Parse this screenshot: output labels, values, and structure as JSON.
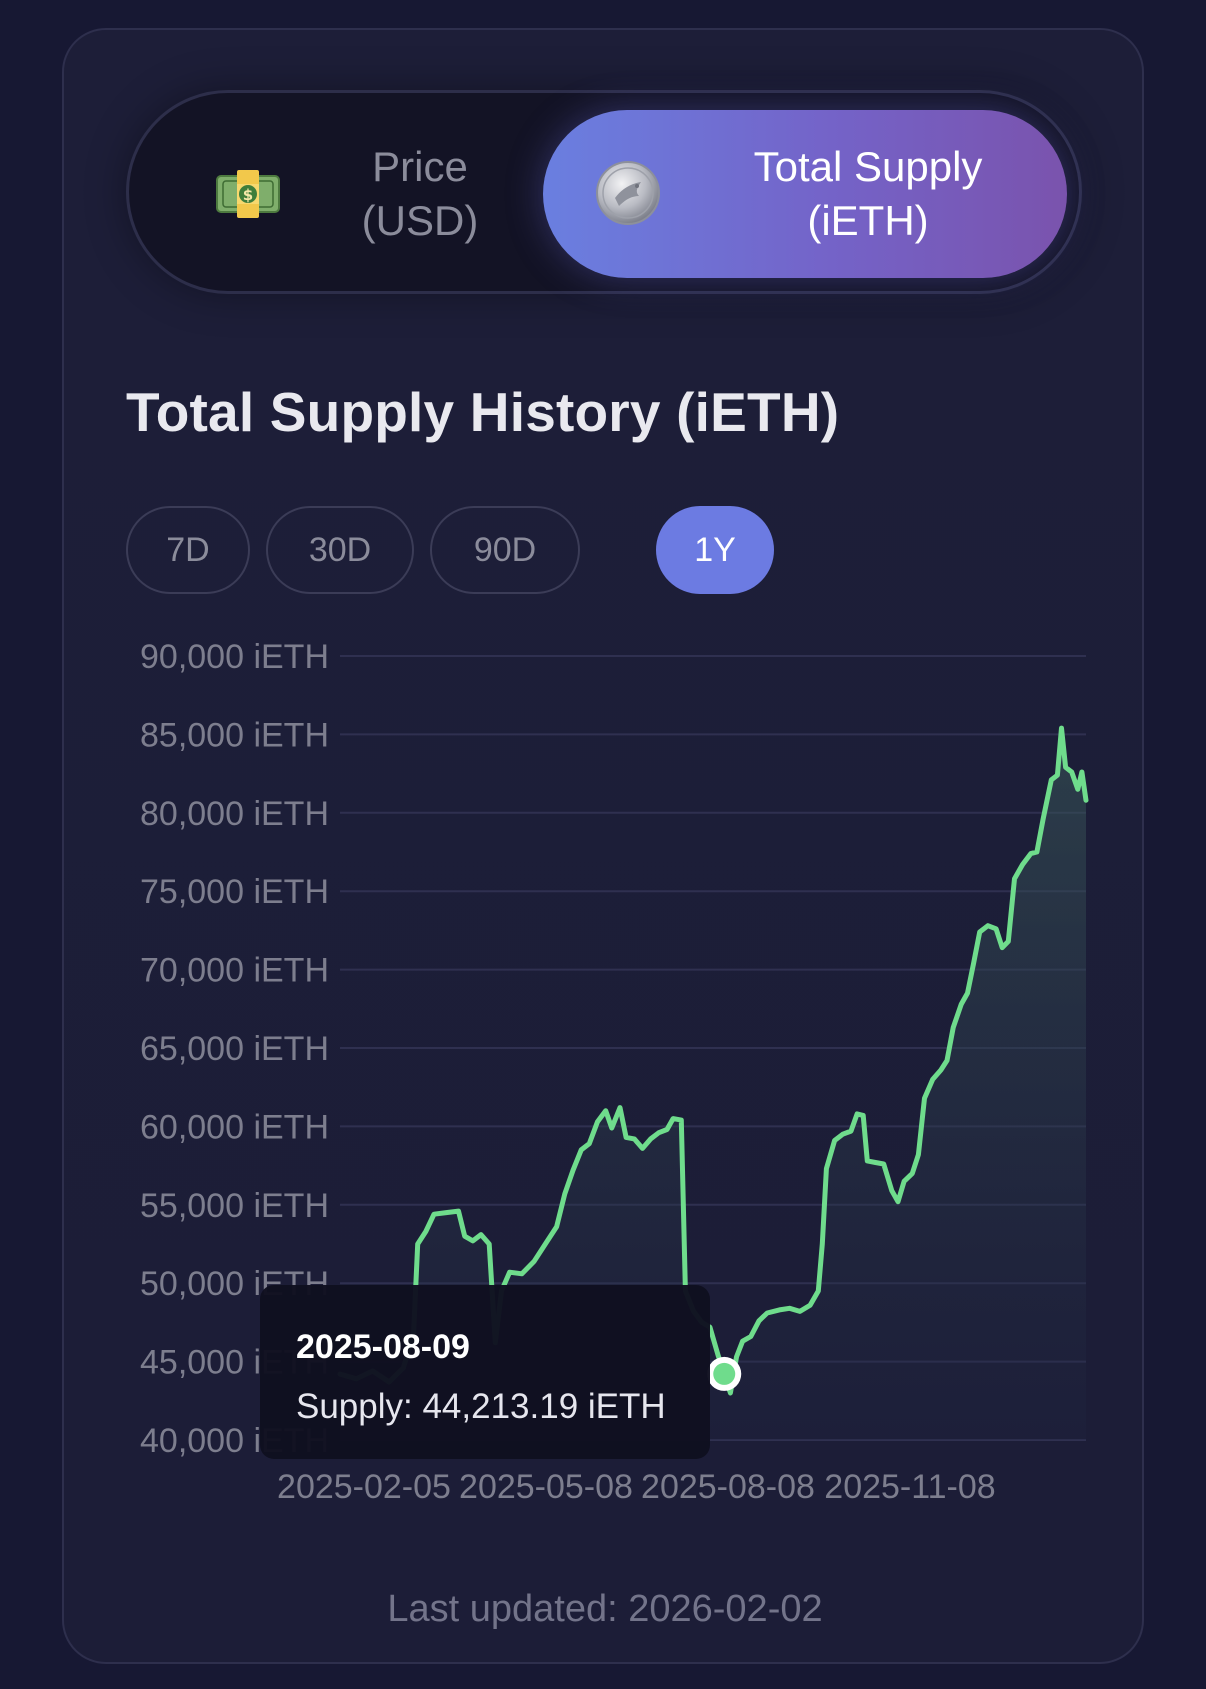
{
  "toggle": {
    "price": {
      "label": "Price\n(USD)",
      "icon": "money-bill-icon"
    },
    "supply": {
      "label": "Total Supply\n(iETH)",
      "icon": "coin-icon"
    }
  },
  "section": {
    "title": "Total Supply History (iETH)"
  },
  "ranges": [
    {
      "label": "7D",
      "active": false
    },
    {
      "label": "30D",
      "active": false
    },
    {
      "label": "90D",
      "active": false
    },
    {
      "label": "1Y",
      "active": true
    }
  ],
  "tooltip": {
    "date": "2025-08-09",
    "value": "Supply: 44,213.19 iETH"
  },
  "footer": {
    "updated": "Last updated: 2026-02-02"
  },
  "colors": {
    "line": "#6fdc8c",
    "accent": "#6c7be2",
    "gradient_end": "#7a53ad"
  },
  "chart_data": {
    "type": "area",
    "title": "Total Supply History (iETH)",
    "ylabel": "",
    "xlabel": "",
    "ylim": [
      40000,
      90000
    ],
    "xlim": [
      "2025-02-02",
      "2026-02-02"
    ],
    "y_ticks": [
      "40,000 iETH",
      "45,000 iETH",
      "50,000 iETH",
      "55,000 iETH",
      "60,000 iETH",
      "65,000 iETH",
      "70,000 iETH",
      "75,000 iETH",
      "80,000 iETH",
      "85,000 iETH",
      "90,000 iETH"
    ],
    "y_tick_values": [
      40000,
      45000,
      50000,
      55000,
      60000,
      65000,
      70000,
      75000,
      80000,
      85000,
      90000
    ],
    "x_ticks": [
      "2025-02-05",
      "2025-05-08",
      "2025-08-08",
      "2025-11-08"
    ],
    "grid": true,
    "highlight": {
      "date": "2025-08-09",
      "value": 44213.19
    },
    "series": [
      {
        "color": "#6fdc8c",
        "points": [
          [
            "2025-02-02",
            44200
          ],
          [
            "2025-02-10",
            43900
          ],
          [
            "2025-02-18",
            44400
          ],
          [
            "2025-02-26",
            43700
          ],
          [
            "2025-03-05",
            44600
          ],
          [
            "2025-03-10",
            46800
          ],
          [
            "2025-03-12",
            52500
          ],
          [
            "2025-03-16",
            53300
          ],
          [
            "2025-03-20",
            54400
          ],
          [
            "2025-03-26",
            54500
          ],
          [
            "2025-04-01",
            54600
          ],
          [
            "2025-04-04",
            53000
          ],
          [
            "2025-04-08",
            52700
          ],
          [
            "2025-04-12",
            53100
          ],
          [
            "2025-04-16",
            52500
          ],
          [
            "2025-04-19",
            46200
          ],
          [
            "2025-04-22",
            49500
          ],
          [
            "2025-04-26",
            50700
          ],
          [
            "2025-05-02",
            50600
          ],
          [
            "2025-05-08",
            51400
          ],
          [
            "2025-05-14",
            52600
          ],
          [
            "2025-05-19",
            53600
          ],
          [
            "2025-05-23",
            55700
          ],
          [
            "2025-05-27",
            57200
          ],
          [
            "2025-05-31",
            58500
          ],
          [
            "2025-06-04",
            58900
          ],
          [
            "2025-06-08",
            60300
          ],
          [
            "2025-06-12",
            61000
          ],
          [
            "2025-06-15",
            59900
          ],
          [
            "2025-06-19",
            61200
          ],
          [
            "2025-06-22",
            59300
          ],
          [
            "2025-06-26",
            59200
          ],
          [
            "2025-06-30",
            58600
          ],
          [
            "2025-07-04",
            59200
          ],
          [
            "2025-07-08",
            59600
          ],
          [
            "2025-07-12",
            59800
          ],
          [
            "2025-07-15",
            60500
          ],
          [
            "2025-07-19",
            60400
          ],
          [
            "2025-07-21",
            49500
          ],
          [
            "2025-07-25",
            48200
          ],
          [
            "2025-07-29",
            47500
          ],
          [
            "2025-08-02",
            47200
          ],
          [
            "2025-08-06",
            45400
          ],
          [
            "2025-08-09",
            44213.19
          ],
          [
            "2025-08-12",
            43000
          ],
          [
            "2025-08-15",
            45300
          ],
          [
            "2025-08-18",
            46300
          ],
          [
            "2025-08-22",
            46600
          ],
          [
            "2025-08-26",
            47600
          ],
          [
            "2025-08-30",
            48100
          ],
          [
            "2025-09-05",
            48300
          ],
          [
            "2025-09-10",
            48400
          ],
          [
            "2025-09-15",
            48200
          ],
          [
            "2025-09-20",
            48600
          ],
          [
            "2025-09-24",
            49500
          ],
          [
            "2025-09-26",
            52500
          ],
          [
            "2025-09-28",
            57300
          ],
          [
            "2025-10-02",
            59100
          ],
          [
            "2025-10-06",
            59500
          ],
          [
            "2025-10-10",
            59700
          ],
          [
            "2025-10-13",
            60800
          ],
          [
            "2025-10-16",
            60700
          ],
          [
            "2025-10-18",
            57800
          ],
          [
            "2025-10-22",
            57700
          ],
          [
            "2025-10-26",
            57600
          ],
          [
            "2025-10-30",
            55900
          ],
          [
            "2025-11-02",
            55200
          ],
          [
            "2025-11-05",
            56500
          ],
          [
            "2025-11-09",
            57000
          ],
          [
            "2025-11-12",
            58200
          ],
          [
            "2025-11-15",
            61800
          ],
          [
            "2025-11-19",
            63000
          ],
          [
            "2025-11-23",
            63600
          ],
          [
            "2025-11-26",
            64200
          ],
          [
            "2025-11-29",
            66300
          ],
          [
            "2025-12-03",
            67800
          ],
          [
            "2025-12-06",
            68500
          ],
          [
            "2025-12-09",
            70400
          ],
          [
            "2025-12-12",
            72400
          ],
          [
            "2025-12-16",
            72800
          ],
          [
            "2025-12-20",
            72600
          ],
          [
            "2025-12-23",
            71400
          ],
          [
            "2025-12-26",
            71800
          ],
          [
            "2025-12-29",
            75800
          ],
          [
            "2026-01-02",
            76700
          ],
          [
            "2026-01-06",
            77400
          ],
          [
            "2026-01-09",
            77500
          ],
          [
            "2026-01-12",
            79600
          ],
          [
            "2026-01-16",
            82100
          ],
          [
            "2026-01-19",
            82400
          ],
          [
            "2026-01-21",
            85400
          ],
          [
            "2026-01-23",
            82900
          ],
          [
            "2026-01-26",
            82600
          ],
          [
            "2026-01-29",
            81500
          ],
          [
            "2026-01-31",
            82600
          ],
          [
            "2026-02-02",
            80800
          ]
        ]
      }
    ]
  }
}
